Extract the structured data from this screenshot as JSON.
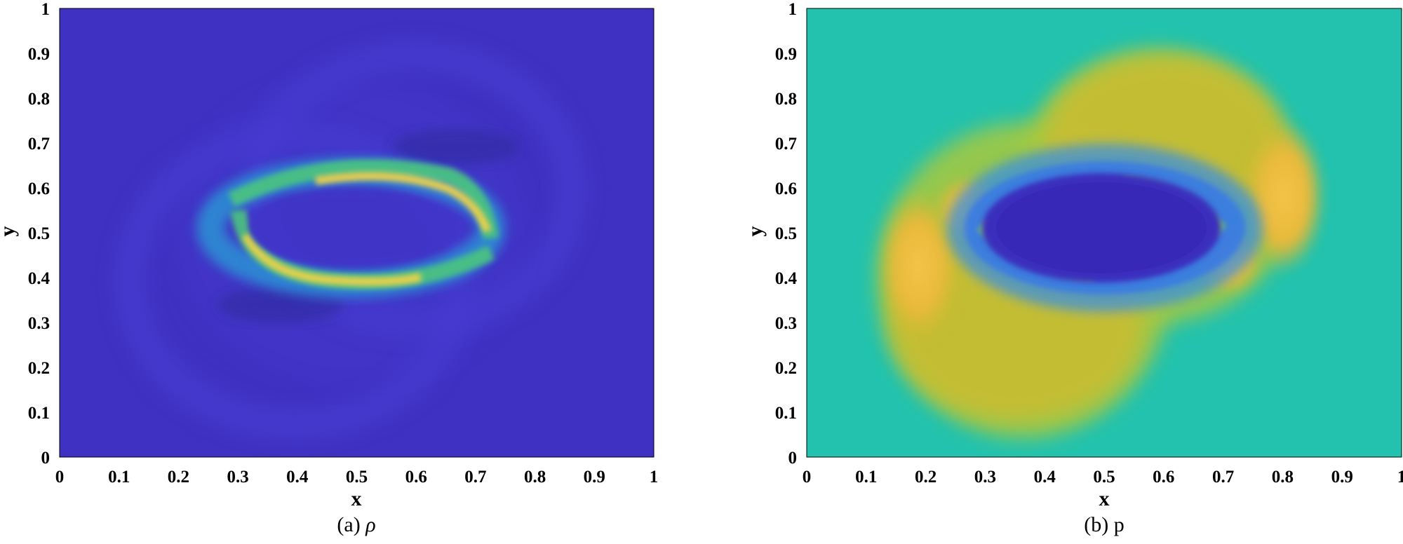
{
  "chart_data": [
    {
      "type": "heatmap",
      "caption_prefix": "(a)",
      "caption_symbol": "ρ",
      "xlabel": "x",
      "ylabel": "y",
      "xlim": [
        0,
        1
      ],
      "ylim": [
        0,
        1
      ],
      "x_ticks": [
        "0",
        "0.1",
        "0.2",
        "0.3",
        "0.4",
        "0.5",
        "0.6",
        "0.7",
        "0.8",
        "0.9",
        "1"
      ],
      "y_ticks": [
        "0",
        "0.1",
        "0.2",
        "0.3",
        "0.4",
        "0.5",
        "0.6",
        "0.7",
        "0.8",
        "0.9",
        "1"
      ],
      "colormap": "parula",
      "background_color": "#3f32c2",
      "grid": false,
      "features": [
        {
          "kind": "faint-shock-shell",
          "cx": 0.5,
          "cy": 0.5,
          "rx": 0.3,
          "ry": 0.3,
          "intensity": 0.06
        },
        {
          "kind": "dense-arc",
          "cx": 0.5,
          "cy": 0.5,
          "rx": 0.22,
          "ry": 0.1,
          "intensity": 0.85
        },
        {
          "kind": "dense-band-peak",
          "x": 0.42,
          "y": 0.38,
          "intensity": 0.9
        },
        {
          "kind": "dense-band-peak",
          "x": 0.6,
          "y": 0.61,
          "intensity": 0.9
        }
      ]
    },
    {
      "type": "heatmap",
      "caption_prefix": "(b)",
      "caption_symbol": "p",
      "xlabel": "x",
      "ylabel": "y",
      "xlim": [
        0,
        1
      ],
      "ylim": [
        0,
        1
      ],
      "x_ticks": [
        "0",
        "0.1",
        "0.2",
        "0.3",
        "0.4",
        "0.5",
        "0.6",
        "0.7",
        "0.8",
        "0.9",
        "1"
      ],
      "y_ticks": [
        "0",
        "0.1",
        "0.2",
        "0.3",
        "0.4",
        "0.5",
        "0.6",
        "0.7",
        "0.8",
        "0.9",
        "1"
      ],
      "colormap": "parula",
      "background_color": "#22c2ae",
      "grid": false,
      "features": [
        {
          "kind": "high-pressure-crescent",
          "x": 0.2,
          "y": 0.4,
          "intensity": 0.85
        },
        {
          "kind": "high-pressure-crescent",
          "x": 0.8,
          "y": 0.6,
          "intensity": 0.85
        },
        {
          "kind": "low-pressure-core",
          "cx": 0.5,
          "cy": 0.5,
          "rx": 0.2,
          "ry": 0.09,
          "intensity": 0.05
        }
      ]
    }
  ]
}
